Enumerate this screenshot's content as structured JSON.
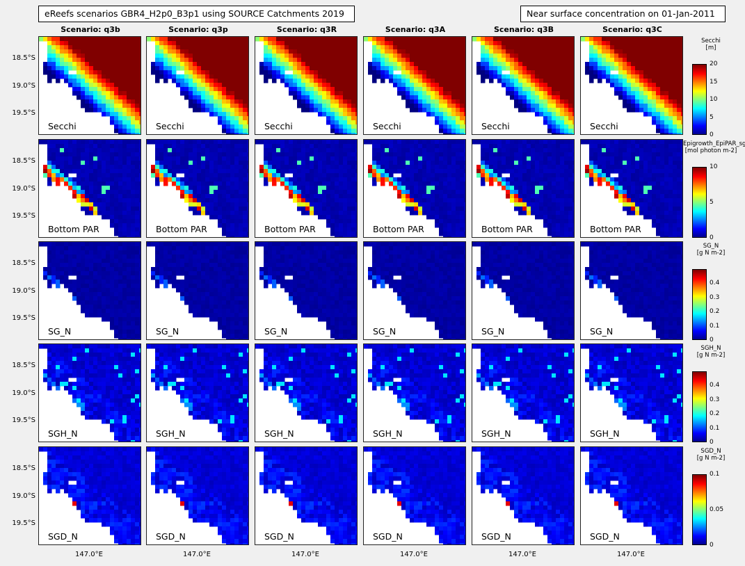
{
  "header": {
    "left_title": "eReefs scenarios GBR4_H2p0_B3p1 using SOURCE Catchments 2019",
    "right_title": "Near surface concentration on 01-Jan-2011"
  },
  "columns": [
    "Scenario: q3b",
    "Scenario: q3p",
    "Scenario: q3R",
    "Scenario: q3A",
    "Scenario: q3B",
    "Scenario: q3C"
  ],
  "rows": [
    {
      "label": "Secchi",
      "colorbar": {
        "title_lines": [
          "Secchi",
          "[m]"
        ],
        "ticks": [
          "0",
          "5",
          "10",
          "15",
          "20"
        ],
        "clim": [
          0,
          20
        ]
      }
    },
    {
      "label": "Bottom PAR",
      "colorbar": {
        "title_lines": [
          "Epigrowth_EpiPAR_sg",
          "[mol photon m-2]"
        ],
        "ticks": [
          "0",
          "5",
          "10"
        ],
        "clim": [
          0,
          10
        ]
      }
    },
    {
      "label": "SG_N",
      "colorbar": {
        "title_lines": [
          "SG_N",
          "[g N m-2]"
        ],
        "ticks": [
          "0",
          "0.1",
          "0.2",
          "0.3",
          "0.4"
        ],
        "clim": [
          0,
          0.5
        ]
      }
    },
    {
      "label": "SGH_N",
      "colorbar": {
        "title_lines": [
          "SGH_N",
          "[g N m-2]"
        ],
        "ticks": [
          "0",
          "0.1",
          "0.2",
          "0.3",
          "0.4"
        ],
        "clim": [
          0,
          0.5
        ]
      }
    },
    {
      "label": "SGD_N",
      "colorbar": {
        "title_lines": [
          "SGD_N",
          "[g N m-2]"
        ],
        "ticks": [
          "0",
          "0.05",
          "0.1"
        ],
        "clim": [
          0,
          0.1
        ]
      }
    }
  ],
  "axes": {
    "y_ticks": [
      "18.5°S",
      "19.0°S",
      "19.5°S"
    ],
    "x_tick": "147.0°E"
  },
  "chart_data": {
    "type": "heatmap",
    "colormap": "jet",
    "colors": {
      "land": "#ffffff",
      "figure_bg": "#f0f0f0"
    },
    "panels_per_row": 6
  }
}
